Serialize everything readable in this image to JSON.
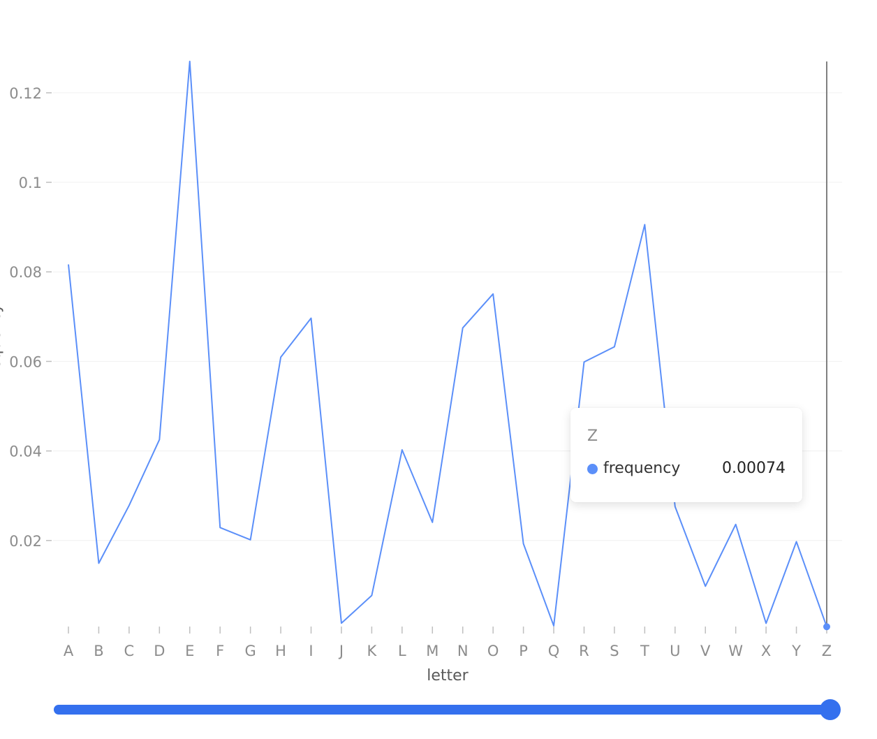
{
  "chart_data": {
    "type": "line",
    "xlabel": "letter",
    "ylabel": "frequency",
    "categories": [
      "A",
      "B",
      "C",
      "D",
      "E",
      "F",
      "G",
      "H",
      "I",
      "J",
      "K",
      "L",
      "M",
      "N",
      "O",
      "P",
      "Q",
      "R",
      "S",
      "T",
      "U",
      "V",
      "W",
      "X",
      "Y",
      "Z"
    ],
    "series": [
      {
        "name": "frequency",
        "values": [
          0.08167,
          0.01492,
          0.02782,
          0.04253,
          0.12702,
          0.02288,
          0.02015,
          0.06094,
          0.06966,
          0.00153,
          0.00772,
          0.04025,
          0.02406,
          0.06749,
          0.07507,
          0.01929,
          0.00095,
          0.05987,
          0.06327,
          0.09056,
          0.02758,
          0.00978,
          0.0236,
          0.0015,
          0.01974,
          0.00074
        ]
      }
    ],
    "yticks": [
      "0.02",
      "0.04",
      "0.06",
      "0.08",
      "0.1",
      "0.12"
    ],
    "ylim": [
      0,
      0.127
    ],
    "grid": true,
    "colors": {
      "line": "#5b8ff9",
      "grid": "#f0f0f0",
      "crosshair": "#808080",
      "slider": "#3470ee",
      "tick": "#bfbfbf"
    }
  },
  "tooltip": {
    "title": "Z",
    "item_name": "frequency",
    "item_value": "0.00074",
    "active_index": 25
  },
  "slider": {
    "start": 0,
    "end": 1
  }
}
